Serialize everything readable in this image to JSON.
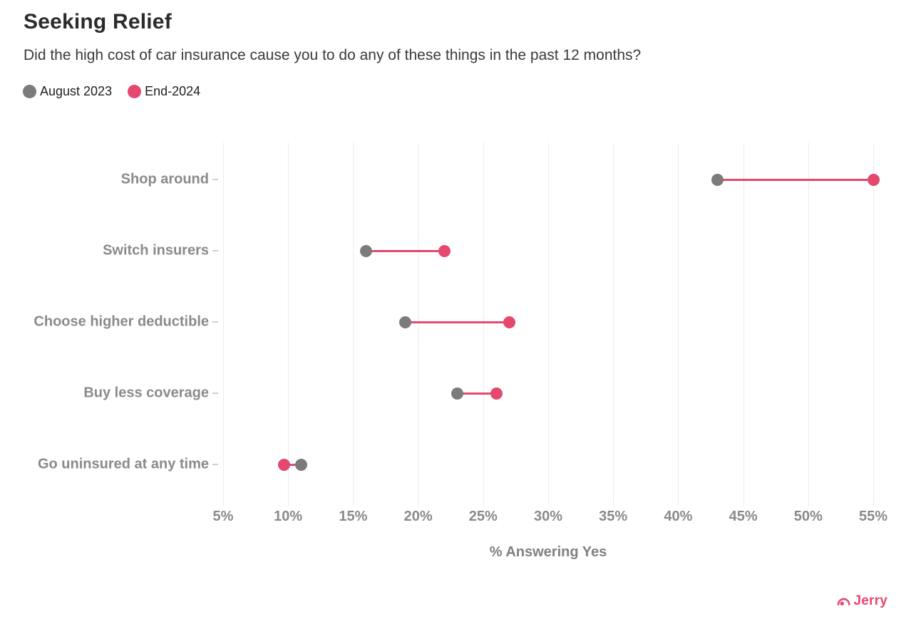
{
  "header": {
    "title": "Seeking Relief",
    "subtitle": "Did the high cost of car insurance cause you to do any of these things in the past 12 months?"
  },
  "legend": {
    "items": [
      {
        "label": "August 2023",
        "color": "#7b7b7b"
      },
      {
        "label": "End-2024",
        "color": "#e5486f"
      }
    ]
  },
  "chart_data": {
    "type": "dumbbell",
    "title": "Seeking Relief",
    "subtitle": "Did the high cost of car insurance cause you to do any of these things in the past 12 months?",
    "categories": [
      "Shop around",
      "Switch insurers",
      "Choose higher deductible",
      "Buy less coverage",
      "Go uninsured at any time"
    ],
    "series": [
      {
        "name": "August 2023",
        "color": "#7b7b7b",
        "values": [
          43,
          16,
          19,
          23,
          11
        ]
      },
      {
        "name": "End-2024",
        "color": "#e5486f",
        "values": [
          55,
          22,
          27,
          26,
          9.7
        ]
      }
    ],
    "connector_color": "#e5486f",
    "xlabel": "% Answering Yes",
    "x_ticks": [
      {
        "value": 5,
        "label": "5%"
      },
      {
        "value": 10,
        "label": "10%"
      },
      {
        "value": 15,
        "label": "15%"
      },
      {
        "value": 20,
        "label": "20%"
      },
      {
        "value": 25,
        "label": "25%"
      },
      {
        "value": 30,
        "label": "30%"
      },
      {
        "value": 35,
        "label": "35%"
      },
      {
        "value": 40,
        "label": "40%"
      },
      {
        "value": 45,
        "label": "45%"
      },
      {
        "value": 50,
        "label": "50%"
      },
      {
        "value": 55,
        "label": "55%"
      }
    ],
    "xlim": [
      5,
      55
    ],
    "grid": true,
    "legend_position": "top-left"
  },
  "branding": {
    "name": "Jerry",
    "color": "#e5486f"
  }
}
